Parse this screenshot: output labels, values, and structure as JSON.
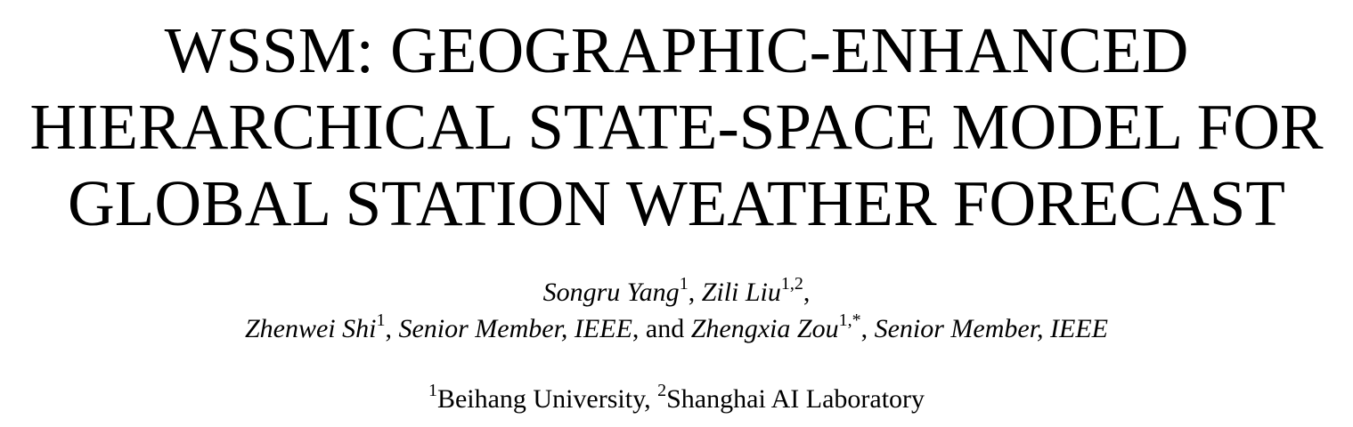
{
  "title": {
    "line1": "WSSM: GEOGRAPHIC-ENHANCED",
    "line2": "HIERARCHICAL STATE-SPACE MODEL FOR",
    "line3": "GLOBAL STATION WEATHER FORECAST"
  },
  "authors": {
    "line1": {
      "a1_name": "Songru Yang",
      "a1_sup": "1",
      "sep1": ", ",
      "a2_name": "Zili Liu",
      "a2_sup": "1,2",
      "end": ","
    },
    "line2": {
      "a3_name": "Zhenwei Shi",
      "a3_sup": "1",
      "a3_sep": ", ",
      "a3_role": "Senior Member, IEEE",
      "and": ", and ",
      "a4_name": "Zhengxia Zou",
      "a4_sup": "1,*",
      "a4_sep": ", ",
      "a4_role": "Senior Member, IEEE"
    }
  },
  "affiliations": {
    "sup1": "1",
    "inst1": "Beihang University, ",
    "sup2": "2",
    "inst2": "Shanghai AI Laboratory"
  }
}
